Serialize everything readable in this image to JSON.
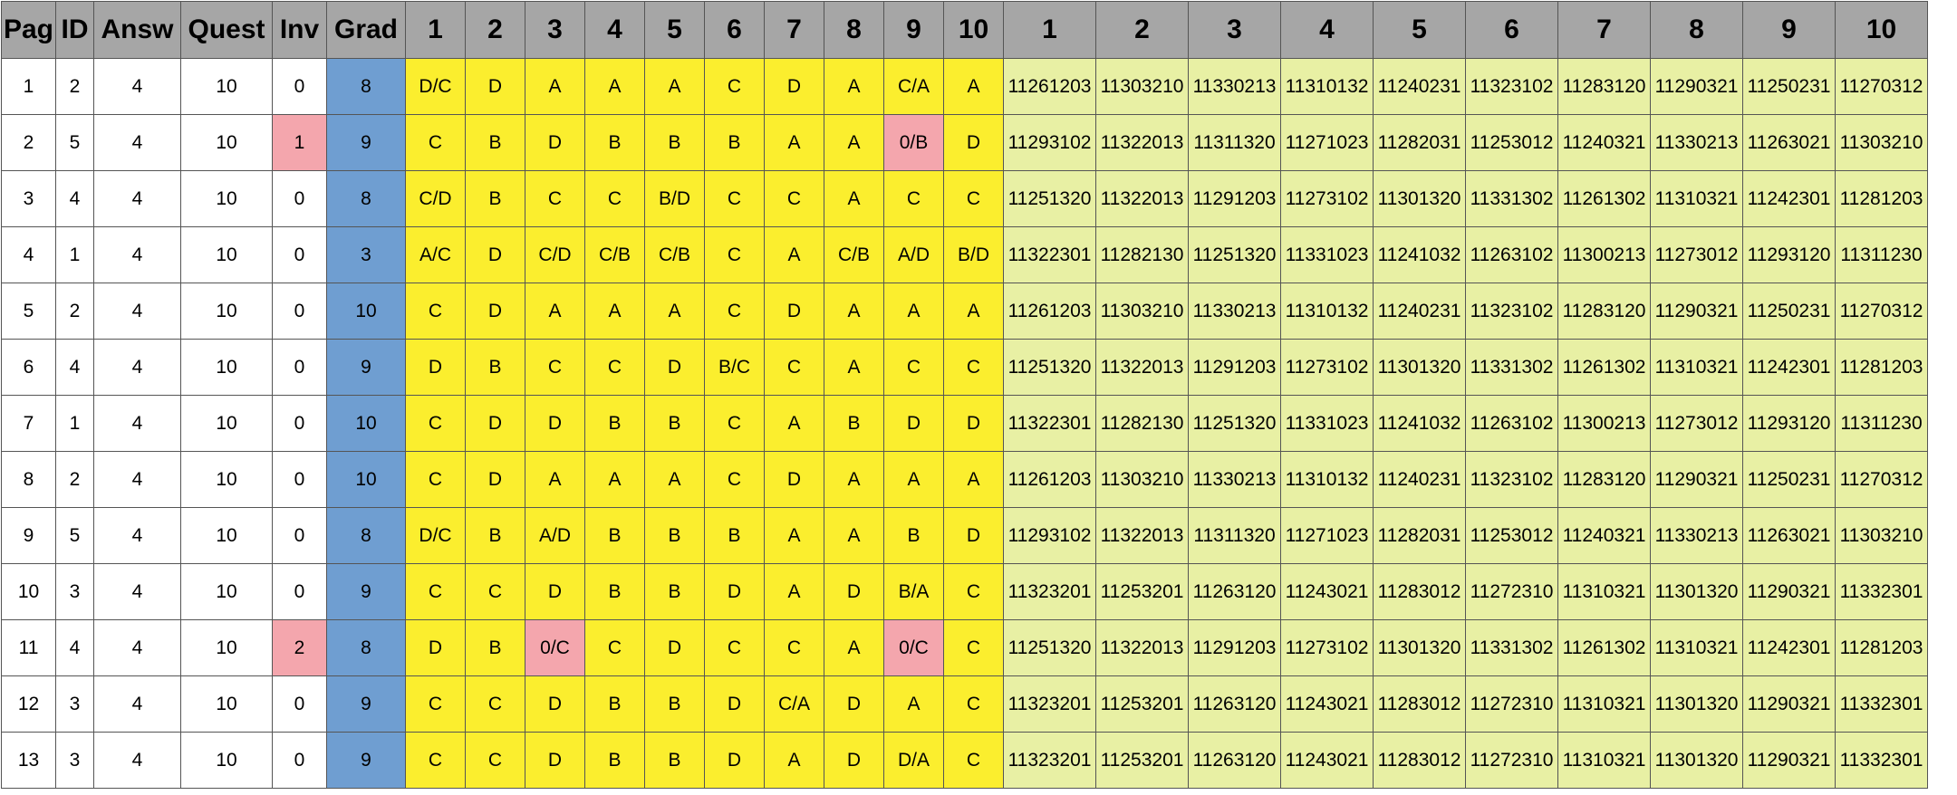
{
  "table": {
    "headers": [
      "Pag",
      "ID",
      "Answ",
      "Quest",
      "Inv",
      "Grad",
      "1",
      "2",
      "3",
      "4",
      "5",
      "6",
      "7",
      "8",
      "9",
      "10",
      "1",
      "2",
      "3",
      "4",
      "5",
      "6",
      "7",
      "8",
      "9",
      "10"
    ],
    "rows": [
      [
        "1",
        "2",
        "4",
        "10",
        "0",
        "8",
        "D/C",
        "D",
        "A",
        "A",
        "A",
        "C",
        "D",
        "A",
        "C/A",
        "A",
        "11261203",
        "11303210",
        "11330213",
        "11310132",
        "11240231",
        "11323102",
        "11283120",
        "11290321",
        "11250231",
        "11270312"
      ],
      [
        "2",
        "5",
        "4",
        "10",
        "1",
        "9",
        "C",
        "B",
        "D",
        "B",
        "B",
        "B",
        "A",
        "A",
        "0/B",
        "D",
        "11293102",
        "11322013",
        "11311320",
        "11271023",
        "11282031",
        "11253012",
        "11240321",
        "11330213",
        "11263021",
        "11303210"
      ],
      [
        "3",
        "4",
        "4",
        "10",
        "0",
        "8",
        "C/D",
        "B",
        "C",
        "C",
        "B/D",
        "C",
        "C",
        "A",
        "C",
        "C",
        "11251320",
        "11322013",
        "11291203",
        "11273102",
        "11301320",
        "11331302",
        "11261302",
        "11310321",
        "11242301",
        "11281203"
      ],
      [
        "4",
        "1",
        "4",
        "10",
        "0",
        "3",
        "A/C",
        "D",
        "C/D",
        "C/B",
        "C/B",
        "C",
        "A",
        "C/B",
        "A/D",
        "B/D",
        "11322301",
        "11282130",
        "11251320",
        "11331023",
        "11241032",
        "11263102",
        "11300213",
        "11273012",
        "11293120",
        "11311230"
      ],
      [
        "5",
        "2",
        "4",
        "10",
        "0",
        "10",
        "C",
        "D",
        "A",
        "A",
        "A",
        "C",
        "D",
        "A",
        "A",
        "A",
        "11261203",
        "11303210",
        "11330213",
        "11310132",
        "11240231",
        "11323102",
        "11283120",
        "11290321",
        "11250231",
        "11270312"
      ],
      [
        "6",
        "4",
        "4",
        "10",
        "0",
        "9",
        "D",
        "B",
        "C",
        "C",
        "D",
        "B/C",
        "C",
        "A",
        "C",
        "C",
        "11251320",
        "11322013",
        "11291203",
        "11273102",
        "11301320",
        "11331302",
        "11261302",
        "11310321",
        "11242301",
        "11281203"
      ],
      [
        "7",
        "1",
        "4",
        "10",
        "0",
        "10",
        "C",
        "D",
        "D",
        "B",
        "B",
        "C",
        "A",
        "B",
        "D",
        "D",
        "11322301",
        "11282130",
        "11251320",
        "11331023",
        "11241032",
        "11263102",
        "11300213",
        "11273012",
        "11293120",
        "11311230"
      ],
      [
        "8",
        "2",
        "4",
        "10",
        "0",
        "10",
        "C",
        "D",
        "A",
        "A",
        "A",
        "C",
        "D",
        "A",
        "A",
        "A",
        "11261203",
        "11303210",
        "11330213",
        "11310132",
        "11240231",
        "11323102",
        "11283120",
        "11290321",
        "11250231",
        "11270312"
      ],
      [
        "9",
        "5",
        "4",
        "10",
        "0",
        "8",
        "D/C",
        "B",
        "A/D",
        "B",
        "B",
        "B",
        "A",
        "A",
        "B",
        "D",
        "11293102",
        "11322013",
        "11311320",
        "11271023",
        "11282031",
        "11253012",
        "11240321",
        "11330213",
        "11263021",
        "11303210"
      ],
      [
        "10",
        "3",
        "4",
        "10",
        "0",
        "9",
        "C",
        "C",
        "D",
        "B",
        "B",
        "D",
        "A",
        "D",
        "B/A",
        "C",
        "11323201",
        "11253201",
        "11263120",
        "11243021",
        "11283012",
        "11272310",
        "11310321",
        "11301320",
        "11290321",
        "11332301"
      ],
      [
        "11",
        "4",
        "4",
        "10",
        "2",
        "8",
        "D",
        "B",
        "0/C",
        "C",
        "D",
        "C",
        "C",
        "A",
        "0/C",
        "C",
        "11251320",
        "11322013",
        "11291203",
        "11273102",
        "11301320",
        "11331302",
        "11261302",
        "11310321",
        "11242301",
        "11281203"
      ],
      [
        "12",
        "3",
        "4",
        "10",
        "0",
        "9",
        "C",
        "C",
        "D",
        "B",
        "B",
        "D",
        "C/A",
        "D",
        "A",
        "C",
        "11323201",
        "11253201",
        "11263120",
        "11243021",
        "11283012",
        "11272310",
        "11310321",
        "11301320",
        "11290321",
        "11332301"
      ],
      [
        "13",
        "3",
        "4",
        "10",
        "0",
        "9",
        "C",
        "C",
        "D",
        "B",
        "B",
        "D",
        "A",
        "D",
        "D/A",
        "C",
        "11323201",
        "11253201",
        "11263120",
        "11243021",
        "11283012",
        "11272310",
        "11310321",
        "11301320",
        "11290321",
        "11332301"
      ]
    ],
    "highlighted_cells": [
      [
        1,
        4
      ],
      [
        1,
        14
      ],
      [
        10,
        4
      ],
      [
        10,
        8
      ],
      [
        10,
        14
      ]
    ],
    "colors": {
      "header_bg": "#a6a6a6",
      "grade_bg": "#6f9ed1",
      "answer_bg": "#fbee2e",
      "key_bg": "#e8f0a4",
      "highlight_bg": "#f4a6ad",
      "border": "#555555"
    }
  }
}
